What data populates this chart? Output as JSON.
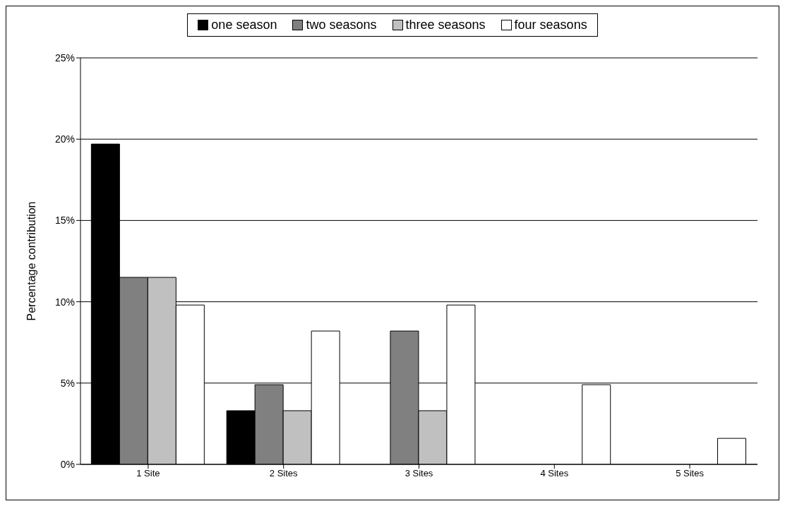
{
  "chart_data": {
    "type": "bar",
    "ylabel": "Percentage contribution",
    "categories": [
      "1 Site",
      "2 Sites",
      "3 Sites",
      "4 Sites",
      "5 Sites"
    ],
    "series": [
      {
        "name": "one season",
        "color": "#000000",
        "values": [
          19.7,
          3.3,
          0,
          0,
          0
        ]
      },
      {
        "name": "two seasons",
        "color": "#808080",
        "values": [
          11.5,
          4.9,
          8.2,
          0,
          0
        ]
      },
      {
        "name": "three seasons",
        "color": "#c0c0c0",
        "values": [
          11.5,
          3.3,
          3.3,
          0,
          0
        ]
      },
      {
        "name": "four seasons",
        "color": "#ffffff",
        "values": [
          9.8,
          8.2,
          9.8,
          4.9,
          1.6
        ]
      }
    ],
    "ylim": [
      0,
      25
    ],
    "yticks": [
      {
        "value": 0,
        "label": "0%"
      },
      {
        "value": 5,
        "label": "5%"
      },
      {
        "value": 10,
        "label": "10%"
      },
      {
        "value": 15,
        "label": "15%"
      },
      {
        "value": 20,
        "label": "20%"
      },
      {
        "value": 25,
        "label": "25%"
      }
    ],
    "grid": "y",
    "legend": "top"
  }
}
